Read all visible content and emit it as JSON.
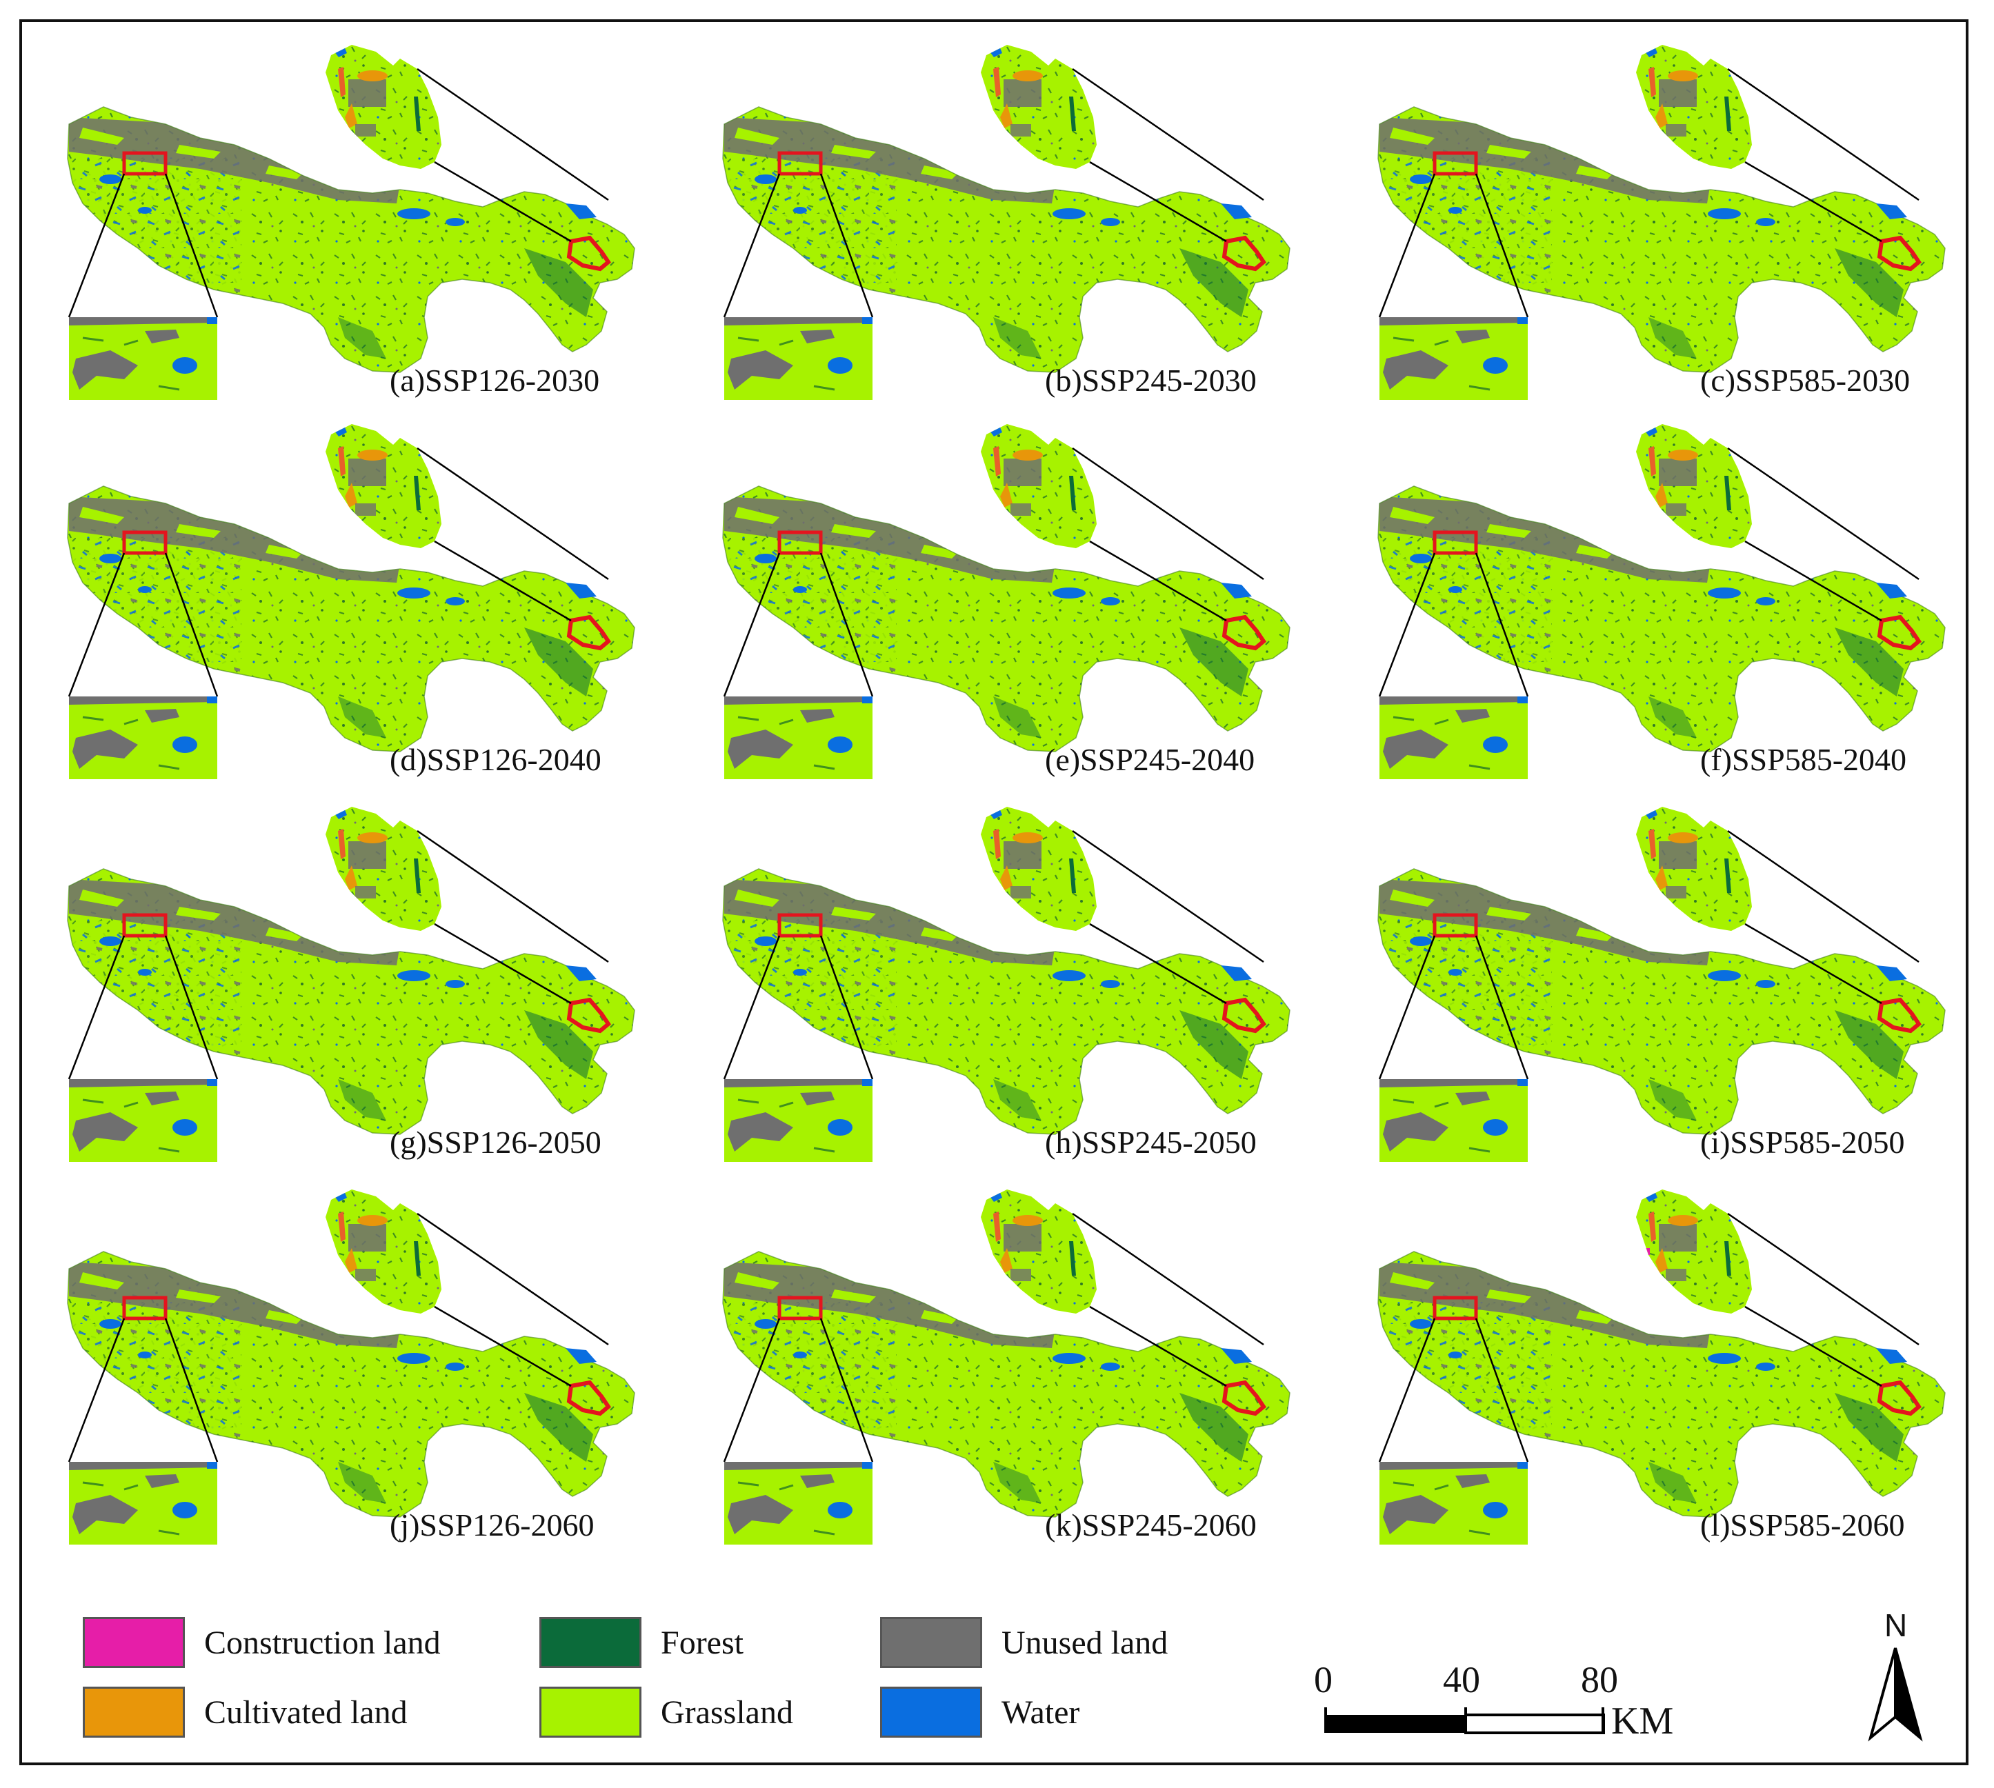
{
  "colors": {
    "construction": "#e61ea8",
    "cultivated": "#e8960a",
    "forest": "#0b6b3a",
    "grassland": "#a7f200",
    "unused": "#6f6f6f",
    "water": "#0a6ee0",
    "highlight": "#e4141e"
  },
  "panels": [
    {
      "id": "a",
      "label": "(a)SSP126-2030"
    },
    {
      "id": "b",
      "label": "(b)SSP245-2030"
    },
    {
      "id": "c",
      "label": "(c)SSP585-2030"
    },
    {
      "id": "d",
      "label": "(d)SSP126-2040"
    },
    {
      "id": "e",
      "label": "(e)SSP245-2040"
    },
    {
      "id": "f",
      "label": "(f)SSP585-2040"
    },
    {
      "id": "g",
      "label": "(g)SSP126-2050"
    },
    {
      "id": "h",
      "label": "(h)SSP245-2050"
    },
    {
      "id": "i",
      "label": "(i)SSP585-2050"
    },
    {
      "id": "j",
      "label": "(j)SSP126-2060"
    },
    {
      "id": "k",
      "label": "(k)SSP245-2060"
    },
    {
      "id": "l",
      "label": "(l)SSP585-2060"
    }
  ],
  "legend": {
    "items": [
      {
        "label": "Construction land",
        "color": "#e61ea8"
      },
      {
        "label": "Cultivated land",
        "color": "#e8960a"
      },
      {
        "label": "Forest",
        "color": "#0b6b3a"
      },
      {
        "label": "Grassland",
        "color": "#a7f200"
      },
      {
        "label": "Unused land",
        "color": "#6f6f6f"
      },
      {
        "label": "Water",
        "color": "#0a6ee0"
      }
    ]
  },
  "scale_bar": {
    "ticks": [
      "0",
      "40",
      "80"
    ],
    "unit": "KM"
  },
  "north_arrow": {
    "letter": "N",
    "icon": "north-arrow-icon"
  }
}
